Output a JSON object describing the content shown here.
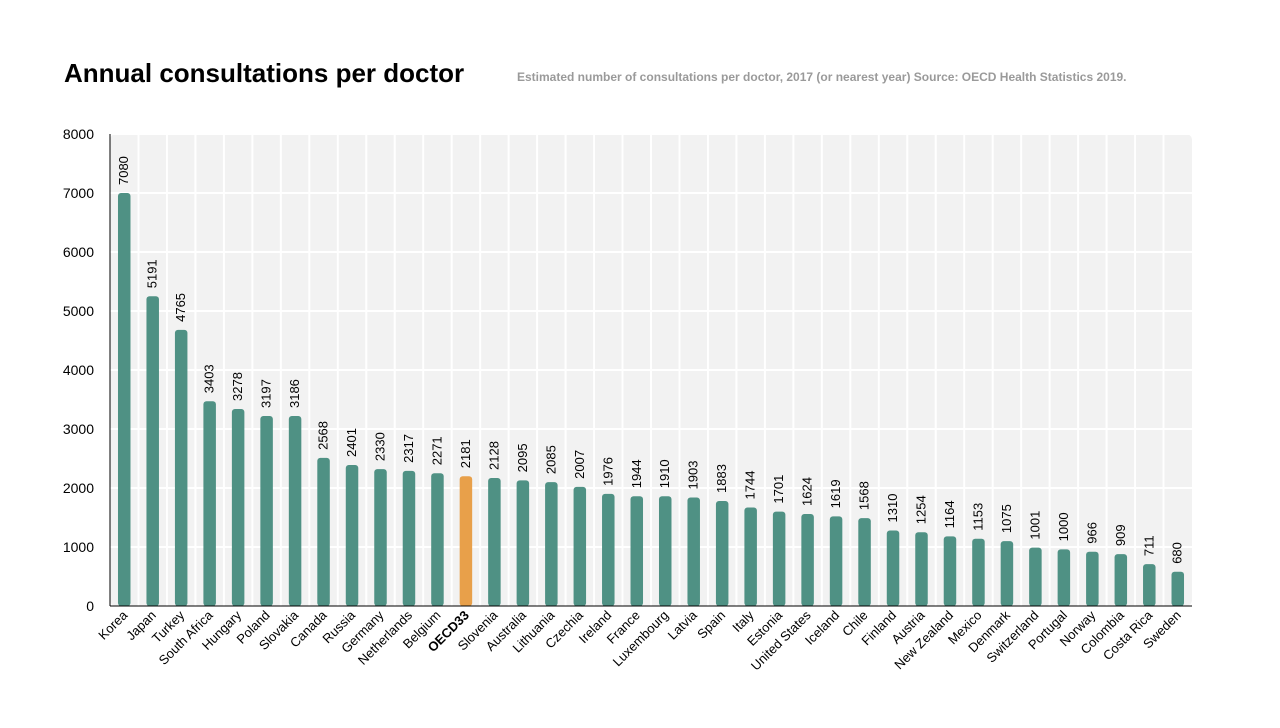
{
  "chart_data": {
    "type": "bar",
    "title": "Annual consultations per doctor",
    "subtitle": "Estimated number of consultations per doctor, 2017 (or nearest year) Source: OECD Health Statistics 2019.",
    "xlabel": "",
    "ylabel": "",
    "ylim": [
      0,
      8000
    ],
    "yticks": [
      0,
      1000,
      2000,
      3000,
      4000,
      5000,
      6000,
      7000,
      8000
    ],
    "grid": true,
    "highlight_category": "OECD33",
    "colors": {
      "bar": "#4f9184",
      "highlight": "#e8a04a",
      "plot_bg": "#f2f2f2",
      "grid": "#ffffff",
      "axis": "#000000"
    },
    "categories": [
      "Korea",
      "Japan",
      "Turkey",
      "South Africa",
      "Hungary",
      "Poland",
      "Slovakia",
      "Canada",
      "Russia",
      "Germany",
      "Netherlands",
      "Belgium",
      "OECD33",
      "Slovenia",
      "Australia",
      "Lithuania",
      "Czechia",
      "Ireland",
      "France",
      "Luxembourg",
      "Latvia",
      "Spain",
      "Italy",
      "Estonia",
      "United States",
      "Iceland",
      "Chile",
      "Finland",
      "Austria",
      "New Zealand",
      "Mexico",
      "Denmark",
      "Switzerland",
      "Portugal",
      "Norway",
      "Colombia",
      "Costa Rica",
      "Sweden"
    ],
    "values": [
      7080,
      5191,
      4765,
      3403,
      3278,
      3197,
      3186,
      2568,
      2401,
      2330,
      2317,
      2271,
      2181,
      2128,
      2095,
      2085,
      2007,
      1976,
      1944,
      1910,
      1903,
      1883,
      1744,
      1701,
      1624,
      1619,
      1568,
      1310,
      1254,
      1164,
      1153,
      1075,
      1001,
      1000,
      966,
      909,
      711,
      680
    ],
    "bar_heights": [
      7000,
      5250,
      4680,
      3470,
      3340,
      3220,
      3220,
      2510,
      2390,
      2320,
      2290,
      2250,
      2200,
      2170,
      2130,
      2100,
      2020,
      1900,
      1860,
      1860,
      1840,
      1780,
      1670,
      1600,
      1560,
      1520,
      1490,
      1280,
      1250,
      1180,
      1140,
      1100,
      990,
      960,
      920,
      880,
      710,
      580
    ]
  }
}
